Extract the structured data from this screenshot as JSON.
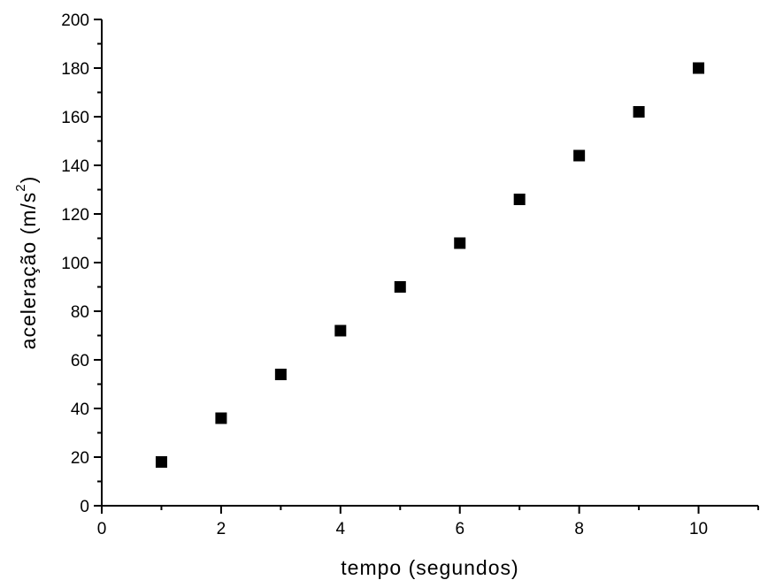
{
  "chart_data": {
    "type": "scatter",
    "title": "",
    "xlabel": "tempo (segundos)",
    "ylabel_main": "aceleração (m/s",
    "ylabel_sup": "2",
    "ylabel_close": ")",
    "xlim": [
      0,
      11
    ],
    "ylim": [
      0,
      200
    ],
    "xticks": [
      0,
      2,
      4,
      6,
      8,
      10
    ],
    "yticks": [
      0,
      20,
      40,
      60,
      80,
      100,
      120,
      140,
      160,
      180,
      200
    ],
    "grid": false,
    "legend": "none",
    "marker": "square",
    "marker_color": "#000000",
    "series": [
      {
        "x": [
          1,
          2,
          3,
          4,
          5,
          6,
          7,
          8,
          9,
          10
        ],
        "y": [
          18,
          36,
          54,
          72,
          90,
          108,
          126,
          144,
          162,
          180
        ]
      }
    ]
  }
}
